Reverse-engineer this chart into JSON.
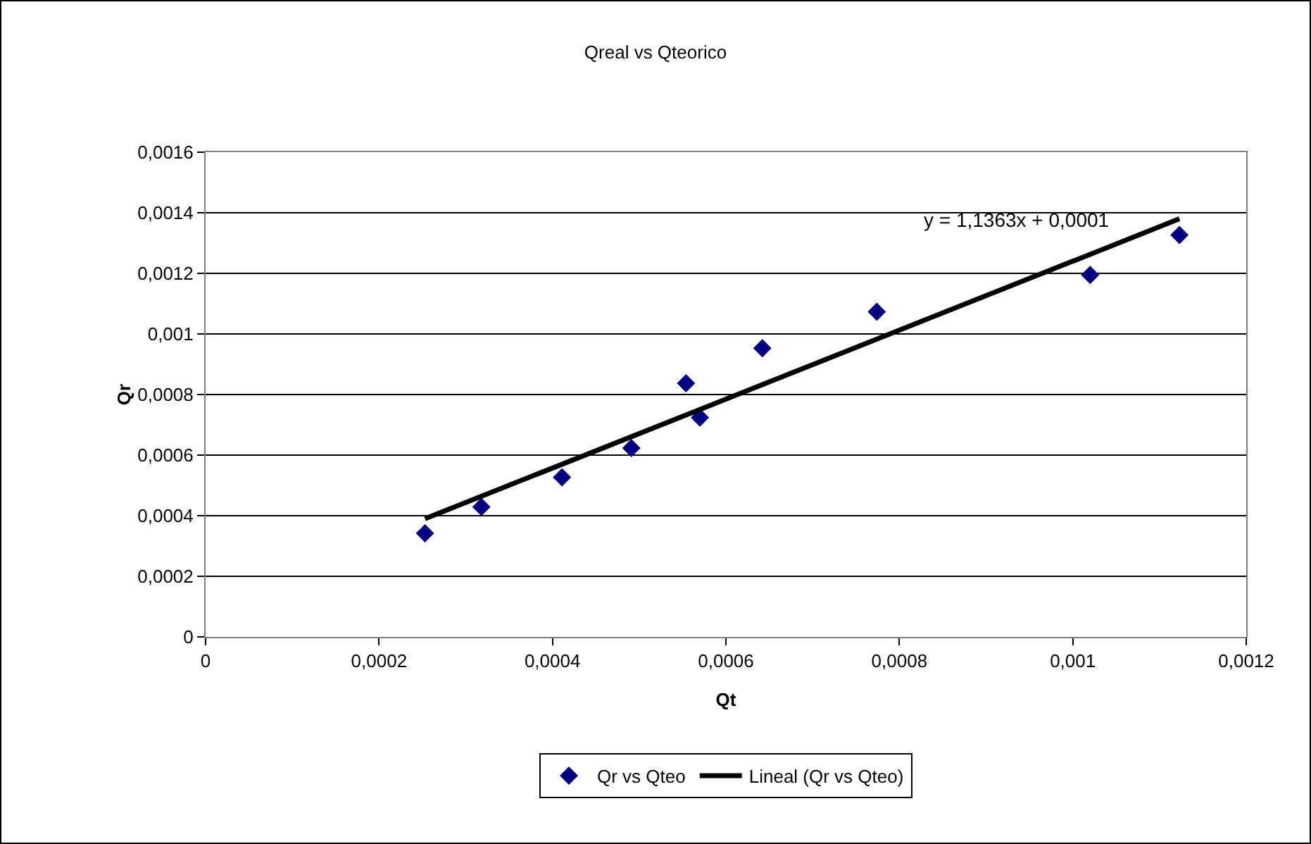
{
  "chart_data": {
    "type": "scatter",
    "title": "Qreal vs Qteorico",
    "xlabel": "Qt",
    "ylabel": "Qr",
    "x": [
      0.000253,
      0.000318,
      0.000411,
      0.000491,
      0.000554,
      0.00057,
      0.000642,
      0.000774,
      0.00102,
      0.001123
    ],
    "series": [
      {
        "name": "Qr vs Qteo",
        "type": "scatter",
        "color": "#000080",
        "marker": "diamond",
        "values": [
          0.000342,
          0.000429,
          0.000527,
          0.000623,
          0.000837,
          0.000724,
          0.000953,
          0.001073,
          0.001195,
          0.001327
        ]
      },
      {
        "name": "Lineal (Qr vs Qteo)",
        "type": "line",
        "color": "#000000",
        "marker": "none",
        "x": [
          0.000253,
          0.001123
        ],
        "values": [
          0.00039,
          0.00138
        ]
      }
    ],
    "annotations": [
      "y = 1,1363x + 0,0001"
    ],
    "xlim": [
      0,
      0.0012
    ],
    "xticks": [
      0,
      {
        "value": 0.0002,
        "label": "0,0002"
      },
      {
        "value": 0.0004,
        "label": "0,0004"
      },
      {
        "value": 0.0006,
        "label": "0,0006"
      },
      {
        "value": 0.0008,
        "label": "0,0008"
      },
      {
        "value": 0.001,
        "label": "0,001"
      },
      {
        "value": 0.0012,
        "label": "0,0012"
      }
    ],
    "ylim": [
      0,
      0.0016
    ],
    "yticks": [
      0,
      {
        "value": 0.0002,
        "label": "0,0002"
      },
      {
        "value": 0.0004,
        "label": "0,0004"
      },
      {
        "value": 0.0006,
        "label": "0,0006"
      },
      {
        "value": 0.0008,
        "label": "0,0008"
      },
      {
        "value": 0.001,
        "label": "0,001"
      },
      {
        "value": 0.0012,
        "label": "0,0012"
      },
      {
        "value": 0.0014,
        "label": "0,0014"
      },
      {
        "value": 0.0016,
        "label": "0,0016"
      }
    ],
    "grid": "y",
    "legend": "bottom"
  }
}
